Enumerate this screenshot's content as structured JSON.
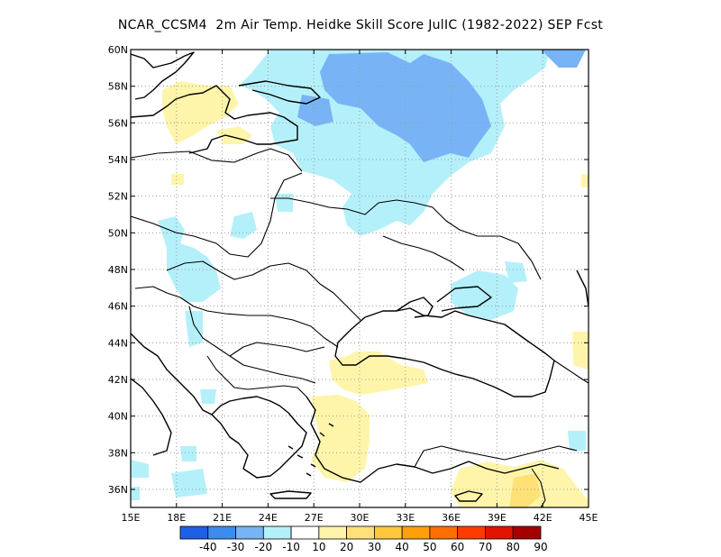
{
  "title": "NCAR_CCSM4  2m Air Temp. Heidke Skill Score JulIC (1982-2022) SEP Fcst",
  "x_axis": {
    "ticks": [
      "15E",
      "18E",
      "21E",
      "24E",
      "27E",
      "30E",
      "33E",
      "36E",
      "39E",
      "42E",
      "45E"
    ]
  },
  "y_axis": {
    "ticks": [
      "36N",
      "38N",
      "40N",
      "42N",
      "44N",
      "46N",
      "48N",
      "50N",
      "52N",
      "54N",
      "56N",
      "58N",
      "60N"
    ]
  },
  "colorbar": {
    "labels": [
      "-40",
      "-30",
      "-20",
      "-10",
      "10",
      "20",
      "30",
      "40",
      "50",
      "60",
      "70",
      "80",
      "90"
    ],
    "colors": [
      "#1e5fe6",
      "#3c8cf0",
      "#78b4f5",
      "#b4f0fa",
      "#ffffff",
      "#fff5aa",
      "#ffe178",
      "#ffc83c",
      "#ffa00a",
      "#ff6e00",
      "#ff3c00",
      "#e11400",
      "#a50000"
    ]
  },
  "colors": {
    "neg10": "#b4f0fa",
    "neg20": "#78b4f5",
    "pos10": "#fff5aa",
    "pos20": "#ffe178",
    "pos30": "#ffc83c"
  }
}
